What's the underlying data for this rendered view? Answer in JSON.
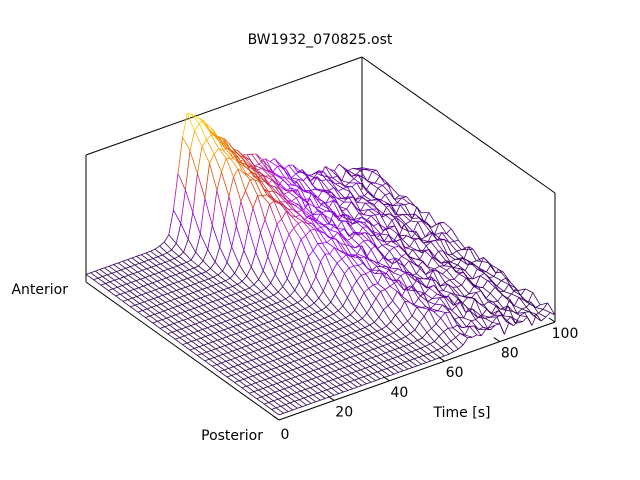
{
  "chart_data": {
    "type": "surface3d",
    "title": "BW1932_070825.ost",
    "xlabel": "Time [s]",
    "ylabel_near": "Posterior",
    "ylabel_far": "Anterior",
    "xlim": [
      0,
      100
    ],
    "x_ticks": [
      "0",
      "20",
      "40",
      "60",
      "80",
      "100"
    ],
    "colormap": [
      "#1a0033",
      "#6a00a8",
      "#a000ff",
      "#d2321e",
      "#f08c00",
      "#ffd400"
    ],
    "profile": {
      "x": [
        0,
        10,
        20,
        25,
        30,
        33,
        36,
        40,
        45,
        50,
        55,
        60,
        65,
        70,
        75,
        80,
        85,
        90,
        95,
        100
      ],
      "peak_height": [
        0.05,
        0.05,
        0.06,
        0.08,
        0.15,
        0.55,
        1.0,
        0.95,
        0.8,
        0.65,
        0.55,
        0.45,
        0.38,
        0.32,
        0.25,
        0.2,
        0.16,
        0.13,
        0.11,
        0.1
      ],
      "front_edge_x": 68
    }
  }
}
